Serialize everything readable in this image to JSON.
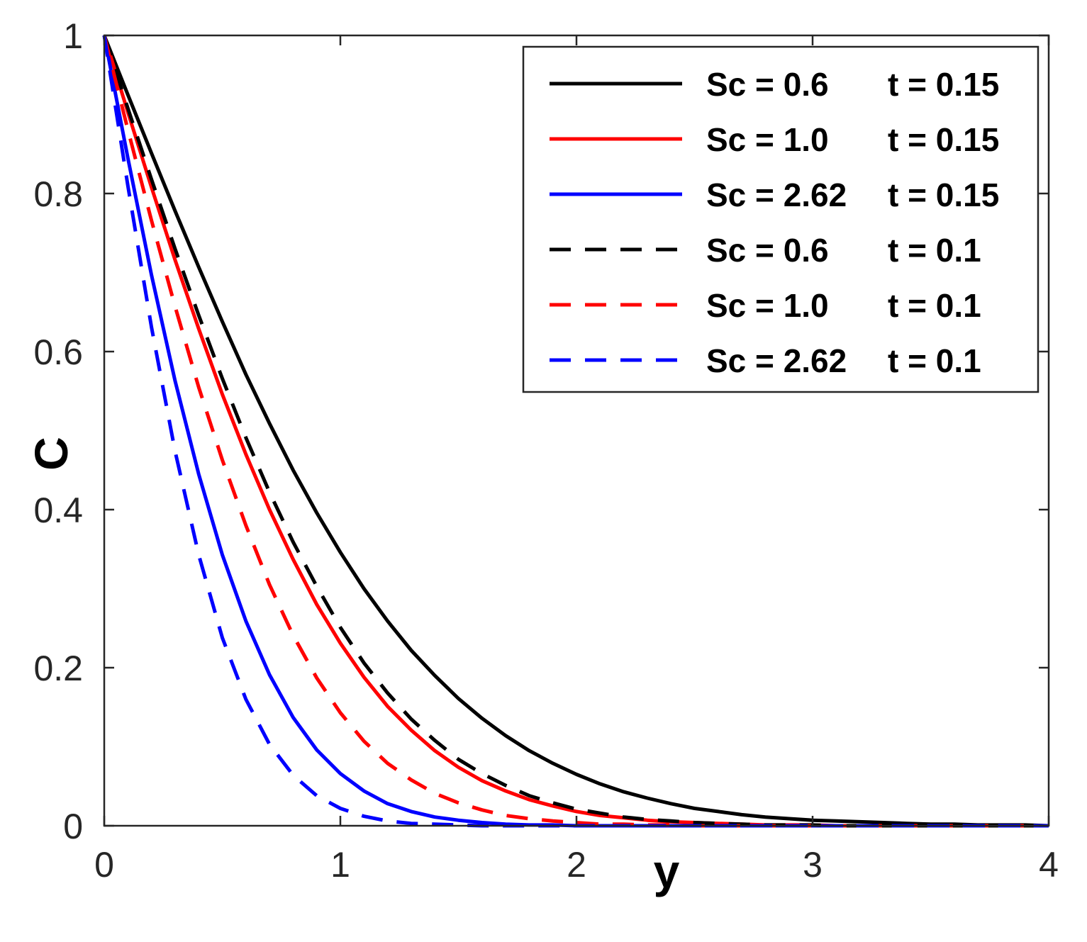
{
  "chart_data": {
    "type": "line",
    "xlabel": "y",
    "ylabel": "C",
    "xlim": [
      0,
      4
    ],
    "ylim": [
      0,
      1
    ],
    "xticks": [
      "0",
      "1",
      "2",
      "3",
      "4"
    ],
    "yticks": [
      "0",
      "0.2",
      "0.4",
      "0.6",
      "0.8",
      "1"
    ],
    "grid": false,
    "legend_position": "top-right",
    "x": [
      0,
      0.1,
      0.2,
      0.3,
      0.4,
      0.5,
      0.6,
      0.7,
      0.8,
      0.9,
      1.0,
      1.1,
      1.2,
      1.3,
      1.4,
      1.5,
      1.6,
      1.7,
      1.8,
      1.9,
      2.0,
      2.1,
      2.2,
      2.3,
      2.4,
      2.5,
      2.6,
      2.7,
      2.8,
      2.9,
      3.0,
      3.1,
      3.2,
      3.3,
      3.4,
      3.5,
      3.6,
      3.7,
      3.8,
      3.9,
      4.0
    ],
    "series": [
      {
        "name": "Sc = 0.6   t = 0.15",
        "color": "#000000",
        "dash": "solid",
        "values": [
          1,
          0.925,
          0.851,
          0.778,
          0.707,
          0.638,
          0.571,
          0.509,
          0.45,
          0.396,
          0.346,
          0.3,
          0.259,
          0.222,
          0.19,
          0.161,
          0.136,
          0.114,
          0.095,
          0.079,
          0.065,
          0.053,
          0.043,
          0.035,
          0.028,
          0.022,
          0.018,
          0.014,
          0.011,
          0.009,
          0.007,
          0.006,
          0.005,
          0.004,
          0.003,
          0.002,
          0.002,
          0.001,
          0.001,
          0.001,
          0
        ]
      },
      {
        "name": "Sc = 1.0   t = 0.15",
        "color": "#ff0000",
        "dash": "solid",
        "values": [
          1,
          0.903,
          0.808,
          0.716,
          0.629,
          0.546,
          0.47,
          0.4,
          0.337,
          0.28,
          0.231,
          0.188,
          0.151,
          0.121,
          0.095,
          0.074,
          0.057,
          0.044,
          0.033,
          0.025,
          0.018,
          0.013,
          0.01,
          0.007,
          0.005,
          0.004,
          0.003,
          0.002,
          0.001,
          0.001,
          0.001,
          0,
          0,
          0,
          0,
          0,
          0,
          0,
          0,
          0,
          0
        ]
      },
      {
        "name": "Sc = 2.62 t = 0.15",
        "color": "#0000ff",
        "dash": "solid",
        "values": [
          1,
          0.845,
          0.697,
          0.563,
          0.445,
          0.343,
          0.259,
          0.191,
          0.137,
          0.096,
          0.066,
          0.044,
          0.028,
          0.018,
          0.011,
          0.007,
          0.004,
          0.002,
          0.001,
          0.001,
          0,
          0,
          0,
          0,
          0,
          0,
          0,
          0,
          0,
          0,
          0,
          0,
          0,
          0,
          0,
          0,
          0,
          0,
          0,
          0,
          0
        ]
      },
      {
        "name": "Sc = 0.6   t = 0.1",
        "color": "#000000",
        "dash": "dashed",
        "values": [
          1,
          0.908,
          0.818,
          0.73,
          0.646,
          0.566,
          0.491,
          0.422,
          0.359,
          0.303,
          0.251,
          0.206,
          0.168,
          0.135,
          0.108,
          0.084,
          0.066,
          0.051,
          0.038,
          0.029,
          0.021,
          0.016,
          0.011,
          0.008,
          0.006,
          0.004,
          0.003,
          0.002,
          0.001,
          0.001,
          0.001,
          0,
          0,
          0,
          0,
          0,
          0,
          0,
          0,
          0,
          0
        ]
      },
      {
        "name": "Sc = 1.0   t = 0.1",
        "color": "#ff0000",
        "dash": "dashed",
        "values": [
          1,
          0.881,
          0.766,
          0.657,
          0.555,
          0.463,
          0.38,
          0.305,
          0.241,
          0.187,
          0.143,
          0.107,
          0.079,
          0.058,
          0.041,
          0.029,
          0.02,
          0.013,
          0.009,
          0.006,
          0.004,
          0.002,
          0.002,
          0.001,
          0.001,
          0,
          0,
          0,
          0,
          0,
          0,
          0,
          0,
          0,
          0,
          0,
          0,
          0,
          0,
          0,
          0
        ]
      },
      {
        "name": "Sc = 2.62 t = 0.1",
        "color": "#0000ff",
        "dash": "dashed",
        "values": [
          1,
          0.81,
          0.631,
          0.474,
          0.343,
          0.238,
          0.16,
          0.103,
          0.064,
          0.038,
          0.022,
          0.012,
          0.006,
          0.003,
          0.002,
          0.001,
          0,
          0,
          0,
          0,
          0,
          0,
          0,
          0,
          0,
          0,
          0,
          0,
          0,
          0,
          0,
          0,
          0,
          0,
          0,
          0,
          0,
          0,
          0,
          0,
          0
        ]
      }
    ]
  }
}
